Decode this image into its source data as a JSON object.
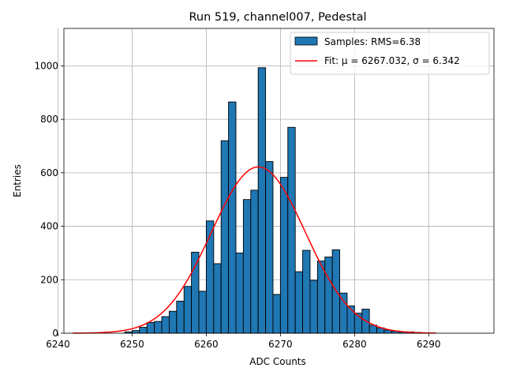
{
  "chart_data": {
    "type": "bar",
    "title": "Run 519, channel007, Pedestal",
    "xlabel": "ADC Counts",
    "ylabel": "Entries",
    "xlim": [
      6240.8,
      6298.8
    ],
    "ylim": [
      0,
      1140
    ],
    "x_ticks": [
      6240,
      6250,
      6260,
      6270,
      6280,
      6290
    ],
    "y_ticks": [
      0,
      200,
      400,
      600,
      800,
      1000
    ],
    "grid": true,
    "legend_placement": "top-right",
    "bin_width": 1,
    "bins": [
      {
        "x": 6249,
        "y": 5
      },
      {
        "x": 6250,
        "y": 10
      },
      {
        "x": 6251,
        "y": 22
      },
      {
        "x": 6252,
        "y": 40
      },
      {
        "x": 6253,
        "y": 44
      },
      {
        "x": 6254,
        "y": 62
      },
      {
        "x": 6255,
        "y": 82
      },
      {
        "x": 6256,
        "y": 120
      },
      {
        "x": 6257,
        "y": 175
      },
      {
        "x": 6258,
        "y": 303
      },
      {
        "x": 6259,
        "y": 157
      },
      {
        "x": 6260,
        "y": 420
      },
      {
        "x": 6261,
        "y": 260
      },
      {
        "x": 6262,
        "y": 720
      },
      {
        "x": 6263,
        "y": 865
      },
      {
        "x": 6264,
        "y": 300
      },
      {
        "x": 6265,
        "y": 500
      },
      {
        "x": 6266,
        "y": 535
      },
      {
        "x": 6267,
        "y": 993
      },
      {
        "x": 6268,
        "y": 642
      },
      {
        "x": 6269,
        "y": 145
      },
      {
        "x": 6270,
        "y": 583
      },
      {
        "x": 6271,
        "y": 770
      },
      {
        "x": 6272,
        "y": 230
      },
      {
        "x": 6273,
        "y": 310
      },
      {
        "x": 6274,
        "y": 198
      },
      {
        "x": 6275,
        "y": 270
      },
      {
        "x": 6276,
        "y": 285
      },
      {
        "x": 6277,
        "y": 312
      },
      {
        "x": 6278,
        "y": 150
      },
      {
        "x": 6279,
        "y": 102
      },
      {
        "x": 6280,
        "y": 75
      },
      {
        "x": 6281,
        "y": 90
      },
      {
        "x": 6282,
        "y": 30
      },
      {
        "x": 6283,
        "y": 20
      },
      {
        "x": 6284,
        "y": 12
      },
      {
        "x": 6285,
        "y": 8
      },
      {
        "x": 6286,
        "y": 5
      },
      {
        "x": 6287,
        "y": 5
      },
      {
        "x": 6288,
        "y": 3
      }
    ],
    "fit": {
      "type": "gaussian",
      "mu": 6267.032,
      "sigma": 6.342,
      "amplitude": 622,
      "x_range": [
        6242,
        6291
      ]
    },
    "series": [
      {
        "name": "Samples: RMS=6.38",
        "kind": "histogram",
        "color": "#1f77b4"
      },
      {
        "name": "Fit: μ = 6267.032, σ = 6.342",
        "kind": "line",
        "color": "#ff0000"
      }
    ]
  }
}
